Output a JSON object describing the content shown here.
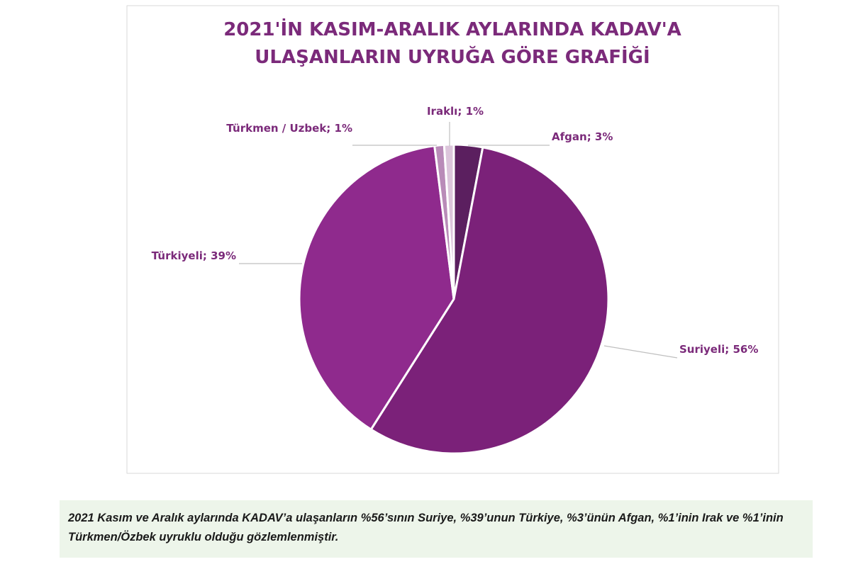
{
  "chart_data": {
    "type": "pie",
    "title": [
      "2021'İN KASIM-ARALIK AYLARINDA KADAV'A",
      "ULAŞANLARIN UYRUĞA GÖRE GRAFİĞİ"
    ],
    "categories": [
      "Afgan",
      "Suriyeli",
      "Türkiyeli",
      "Türkmen / Uzbek",
      "Iraklı"
    ],
    "values": [
      3,
      56,
      39,
      1,
      1
    ],
    "value_labels": [
      "3%",
      "56%",
      "39%",
      "1%",
      "1%"
    ],
    "label_separator": "; ",
    "colors": [
      "#5b1f5f",
      "#7b2179",
      "#8f2a8d",
      "#b98bb8",
      "#dcc5db"
    ]
  },
  "caption": "2021 Kasım ve Aralık aylarında KADAV’a ulaşanların %56’sının Suriye, %39’unun Türkiye, %3’ünün Afgan, %1’inin Irak ve %1’inin Türkmen/Özbek uyruklu olduğu gözlemlenmiştir."
}
